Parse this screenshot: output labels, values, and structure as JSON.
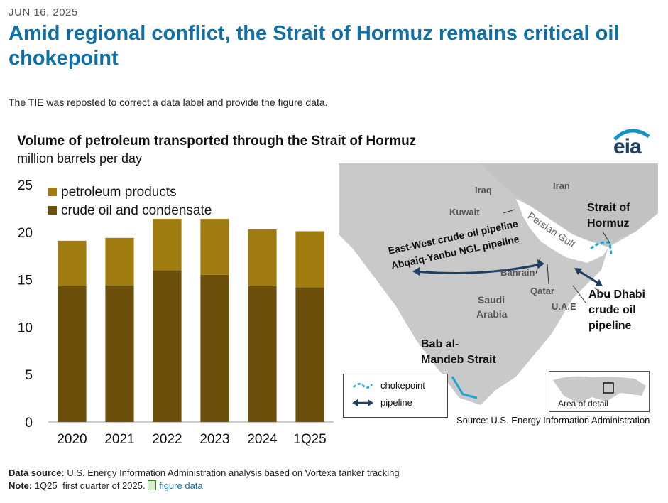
{
  "page": {
    "date": "JUN 16, 2025",
    "title": "Amid regional conflict, the Strait of Hormuz remains critical oil chokepoint",
    "intro": "The TIE was reposted to correct a data label and provide the figure data."
  },
  "chart_data": {
    "type": "bar",
    "stacked": true,
    "title": "Volume of petroleum transported through the Strait of Hormuz",
    "subtitle": "million barrels per day",
    "categories": [
      "2020",
      "2021",
      "2022",
      "2023",
      "2024",
      "1Q25"
    ],
    "series": [
      {
        "name": "crude oil and condensate",
        "color": "#6b4f0a",
        "values": [
          14.3,
          14.4,
          16.0,
          15.5,
          14.3,
          14.2
        ]
      },
      {
        "name": "petroleum products",
        "color": "#a07c10",
        "values": [
          4.8,
          5.0,
          5.4,
          5.9,
          6.0,
          5.9
        ]
      }
    ],
    "ylim": [
      0,
      25
    ],
    "yticks": [
      "0",
      "5",
      "10",
      "15",
      "20",
      "25"
    ],
    "legend_position": "top-left",
    "grid": false
  },
  "logo": {
    "text": "eia"
  },
  "map": {
    "countries": {
      "iraq": "Iraq",
      "iran": "Iran",
      "kuwait": "Kuwait",
      "saudi1": "Saudi",
      "saudi2": "Arabia",
      "bahrain": "Bahrain",
      "qatar": "Qatar",
      "uae": "U.A.E",
      "gulf": "Persian Gulf"
    },
    "strait_hormuz": [
      "Strait of",
      "Hormuz"
    ],
    "abu_dhabi": [
      "Abu Dhabi",
      "crude oil",
      "pipeline"
    ],
    "bab": [
      "Bab al-",
      "Mandeb Strait"
    ],
    "pipeline1": "East-West crude oil pipeline",
    "pipeline2": "Abqaiq-Yanbu NGL pipeline",
    "legend_chokepoint": "chokepoint",
    "legend_pipeline": "pipeline",
    "inset_label": "Area of detail",
    "source": "Source: U.S. Energy Information Administration"
  },
  "footer": {
    "data_source_label": "Data source:",
    "data_source_text": "U.S. Energy Information Administration analysis based on Vortexa tanker tracking",
    "note_label": "Note:",
    "note_text": "1Q25=first quarter of 2025.",
    "figure_data_link": "figure data"
  }
}
